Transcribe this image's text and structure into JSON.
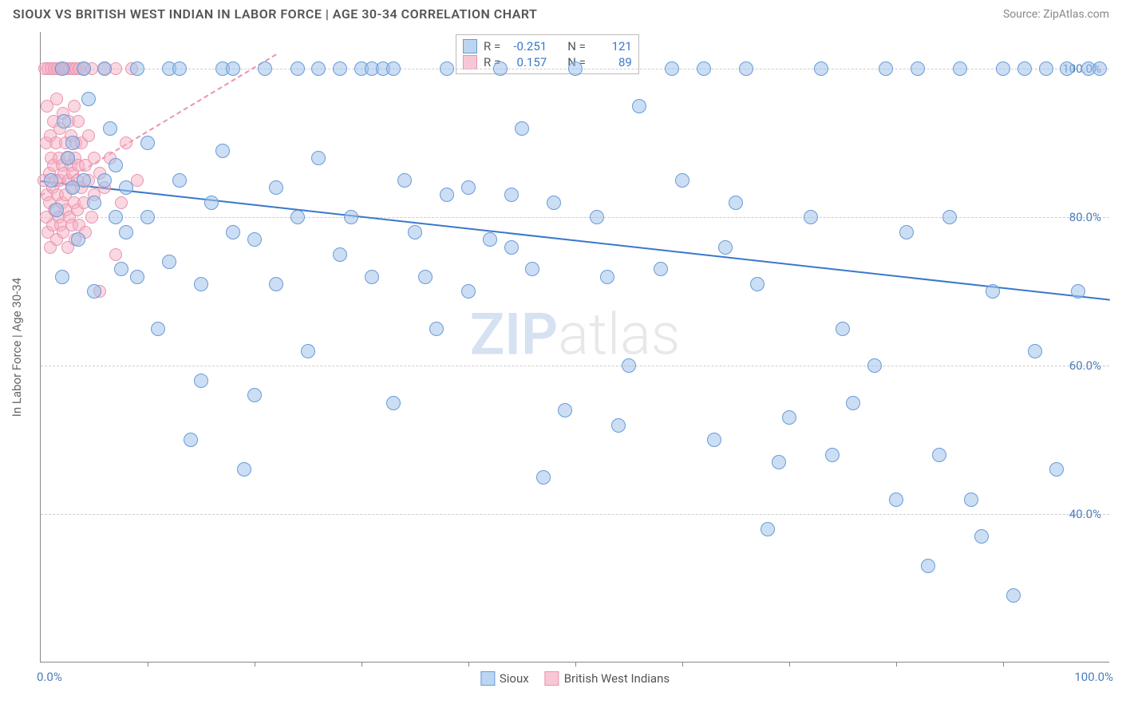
{
  "header": {
    "title": "SIOUX VS BRITISH WEST INDIAN IN LABOR FORCE | AGE 30-34 CORRELATION CHART",
    "source": "Source: ZipAtlas.com"
  },
  "watermark": {
    "part1": "ZIP",
    "part2": "atlas"
  },
  "chart": {
    "type": "scatter",
    "y_axis_title": "In Labor Force | Age 30-34",
    "x_range": [
      0,
      100
    ],
    "y_range": [
      20,
      105
    ],
    "x_min_label": "0.0%",
    "x_max_label": "100.0%",
    "x_tick_positions": [
      10,
      20,
      30,
      40,
      50,
      60,
      70,
      80,
      90
    ],
    "y_ticks": [
      {
        "v": 40,
        "label": "40.0%"
      },
      {
        "v": 60,
        "label": "60.0%"
      },
      {
        "v": 80,
        "label": "80.0%"
      },
      {
        "v": 100,
        "label": "100.0%"
      }
    ],
    "background_color": "#ffffff",
    "grid_color": "#cccccc",
    "series": {
      "sioux": {
        "label": "Sioux",
        "color_fill": "#a0c3eb",
        "color_stroke": "#6a9bd8",
        "R_label": "R =",
        "R": "-0.251",
        "N_label": "N =",
        "N": "121",
        "trend": {
          "x1": 0,
          "y1": 85,
          "x2": 100,
          "y2": 69,
          "color": "#3a78c9",
          "dash": false
        },
        "points": [
          [
            1,
            85
          ],
          [
            2,
            100
          ],
          [
            2,
            72
          ],
          [
            2.5,
            88
          ],
          [
            3,
            84
          ],
          [
            3,
            90
          ],
          [
            4,
            85
          ],
          [
            4,
            100
          ],
          [
            5,
            82
          ],
          [
            5,
            70
          ],
          [
            6,
            85
          ],
          [
            6,
            100
          ],
          [
            7,
            80
          ],
          [
            7,
            87
          ],
          [
            8,
            84
          ],
          [
            8,
            78
          ],
          [
            9,
            100
          ],
          [
            9,
            72
          ],
          [
            10,
            90
          ],
          [
            10,
            80
          ],
          [
            11,
            65
          ],
          [
            12,
            100
          ],
          [
            12,
            74
          ],
          [
            13,
            85
          ],
          [
            13,
            100
          ],
          [
            14,
            50
          ],
          [
            15,
            71
          ],
          [
            15,
            58
          ],
          [
            16,
            82
          ],
          [
            17,
            100
          ],
          [
            17,
            89
          ],
          [
            18,
            78
          ],
          [
            18,
            100
          ],
          [
            19,
            46
          ],
          [
            20,
            77
          ],
          [
            20,
            56
          ],
          [
            21,
            100
          ],
          [
            22,
            71
          ],
          [
            22,
            84
          ],
          [
            24,
            100
          ],
          [
            24,
            80
          ],
          [
            25,
            62
          ],
          [
            26,
            100
          ],
          [
            26,
            88
          ],
          [
            28,
            100
          ],
          [
            28,
            75
          ],
          [
            29,
            80
          ],
          [
            30,
            100
          ],
          [
            31,
            100
          ],
          [
            31,
            72
          ],
          [
            32,
            100
          ],
          [
            33,
            100
          ],
          [
            33,
            55
          ],
          [
            34,
            85
          ],
          [
            35,
            78
          ],
          [
            36,
            72
          ],
          [
            37,
            65
          ],
          [
            38,
            83
          ],
          [
            38,
            100
          ],
          [
            40,
            70
          ],
          [
            40,
            84
          ],
          [
            42,
            77
          ],
          [
            43,
            100
          ],
          [
            44,
            83
          ],
          [
            44,
            76
          ],
          [
            45,
            92
          ],
          [
            46,
            73
          ],
          [
            47,
            45
          ],
          [
            48,
            82
          ],
          [
            49,
            54
          ],
          [
            50,
            100
          ],
          [
            52,
            80
          ],
          [
            53,
            72
          ],
          [
            54,
            52
          ],
          [
            55,
            60
          ],
          [
            56,
            95
          ],
          [
            58,
            73
          ],
          [
            59,
            100
          ],
          [
            60,
            85
          ],
          [
            62,
            100
          ],
          [
            63,
            50
          ],
          [
            64,
            76
          ],
          [
            65,
            82
          ],
          [
            66,
            100
          ],
          [
            67,
            71
          ],
          [
            68,
            38
          ],
          [
            69,
            47
          ],
          [
            70,
            53
          ],
          [
            72,
            80
          ],
          [
            73,
            100
          ],
          [
            74,
            48
          ],
          [
            75,
            65
          ],
          [
            76,
            55
          ],
          [
            78,
            60
          ],
          [
            79,
            100
          ],
          [
            80,
            42
          ],
          [
            81,
            78
          ],
          [
            82,
            100
          ],
          [
            83,
            33
          ],
          [
            84,
            48
          ],
          [
            85,
            80
          ],
          [
            86,
            100
          ],
          [
            87,
            42
          ],
          [
            88,
            37
          ],
          [
            89,
            70
          ],
          [
            90,
            100
          ],
          [
            91,
            29
          ],
          [
            92,
            100
          ],
          [
            93,
            62
          ],
          [
            94,
            100
          ],
          [
            95,
            46
          ],
          [
            96,
            100
          ],
          [
            97,
            70
          ],
          [
            98,
            100
          ],
          [
            99,
            100
          ],
          [
            1.5,
            81
          ],
          [
            2.2,
            93
          ],
          [
            3.5,
            77
          ],
          [
            4.5,
            96
          ],
          [
            6.5,
            92
          ],
          [
            7.5,
            73
          ]
        ]
      },
      "bwi": {
        "label": "British West Indians",
        "color_fill": "#f5afc3",
        "color_stroke": "#e895ae",
        "R_label": "R =",
        "R": "0.157",
        "N_label": "N =",
        "N": "89",
        "trend": {
          "x1": 0,
          "y1": 83,
          "x2": 22,
          "y2": 102,
          "color": "#e895ae",
          "dash": true
        },
        "points": [
          [
            0.3,
            85
          ],
          [
            0.4,
            100
          ],
          [
            0.5,
            80
          ],
          [
            0.5,
            90
          ],
          [
            0.6,
            83
          ],
          [
            0.6,
            95
          ],
          [
            0.7,
            78
          ],
          [
            0.7,
            100
          ],
          [
            0.8,
            86
          ],
          [
            0.8,
            82
          ],
          [
            0.9,
            91
          ],
          [
            0.9,
            76
          ],
          [
            1.0,
            88
          ],
          [
            1.0,
            100
          ],
          [
            1.1,
            84
          ],
          [
            1.1,
            79
          ],
          [
            1.2,
            93
          ],
          [
            1.2,
            87
          ],
          [
            1.3,
            81
          ],
          [
            1.3,
            100
          ],
          [
            1.4,
            85
          ],
          [
            1.4,
            90
          ],
          [
            1.5,
            77
          ],
          [
            1.5,
            96
          ],
          [
            1.6,
            83
          ],
          [
            1.6,
            100
          ],
          [
            1.7,
            88
          ],
          [
            1.7,
            80
          ],
          [
            1.8,
            92
          ],
          [
            1.8,
            85
          ],
          [
            1.9,
            79
          ],
          [
            1.9,
            100
          ],
          [
            2.0,
            87
          ],
          [
            2.0,
            82
          ],
          [
            2.1,
            94
          ],
          [
            2.1,
            78
          ],
          [
            2.2,
            100
          ],
          [
            2.2,
            86
          ],
          [
            2.3,
            90
          ],
          [
            2.3,
            83
          ],
          [
            2.4,
            81
          ],
          [
            2.4,
            100
          ],
          [
            2.5,
            88
          ],
          [
            2.5,
            76
          ],
          [
            2.6,
            93
          ],
          [
            2.6,
            85
          ],
          [
            2.7,
            80
          ],
          [
            2.7,
            100
          ],
          [
            2.8,
            87
          ],
          [
            2.8,
            91
          ],
          [
            2.9,
            84
          ],
          [
            2.9,
            79
          ],
          [
            3.0,
            100
          ],
          [
            3.0,
            86
          ],
          [
            3.1,
            82
          ],
          [
            3.1,
            95
          ],
          [
            3.2,
            88
          ],
          [
            3.2,
            77
          ],
          [
            3.3,
            90
          ],
          [
            3.3,
            100
          ],
          [
            3.4,
            85
          ],
          [
            3.4,
            81
          ],
          [
            3.5,
            93
          ],
          [
            3.5,
            87
          ],
          [
            3.6,
            79
          ],
          [
            3.6,
            100
          ],
          [
            3.8,
            84
          ],
          [
            3.8,
            90
          ],
          [
            4.0,
            82
          ],
          [
            4.0,
            100
          ],
          [
            4.2,
            87
          ],
          [
            4.2,
            78
          ],
          [
            4.5,
            91
          ],
          [
            4.5,
            85
          ],
          [
            4.8,
            80
          ],
          [
            4.8,
            100
          ],
          [
            5.0,
            88
          ],
          [
            5.0,
            83
          ],
          [
            5.5,
            86
          ],
          [
            5.5,
            70
          ],
          [
            6.0,
            100
          ],
          [
            6.0,
            84
          ],
          [
            6.5,
            88
          ],
          [
            7.0,
            75
          ],
          [
            7.0,
            100
          ],
          [
            7.5,
            82
          ],
          [
            8.0,
            90
          ],
          [
            8.5,
            100
          ],
          [
            9.0,
            85
          ]
        ]
      }
    }
  }
}
